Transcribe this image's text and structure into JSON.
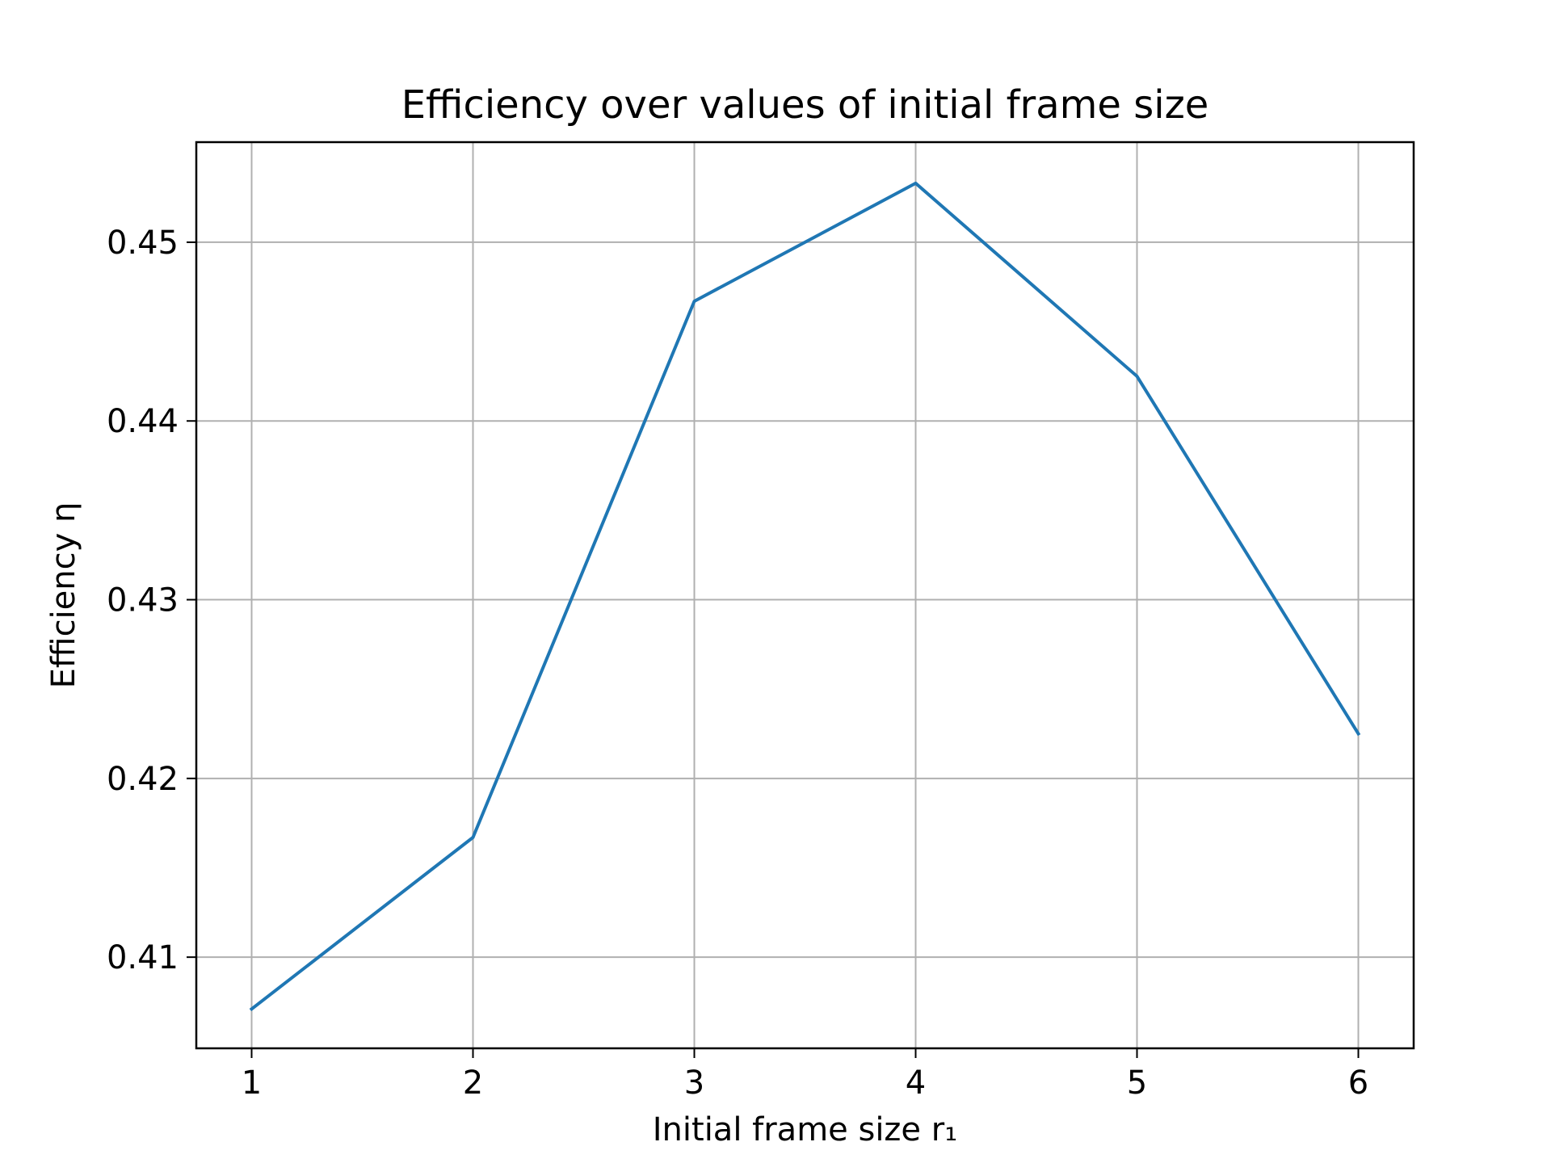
{
  "chart_data": {
    "type": "line",
    "title": "Efficiency over values of initial frame size",
    "xlabel": "Initial frame size r₁",
    "ylabel": "Efficiency η",
    "x": [
      1,
      2,
      3,
      4,
      5,
      6
    ],
    "x_tick_labels": [
      "1",
      "2",
      "3",
      "4",
      "5",
      "6"
    ],
    "y_ticks": [
      0.41,
      0.42,
      0.43,
      0.44,
      0.45
    ],
    "y_tick_labels": [
      "0.41",
      "0.42",
      "0.43",
      "0.44",
      "0.45"
    ],
    "xlim": [
      0.75,
      6.25
    ],
    "ylim": [
      0.4049,
      0.4556
    ],
    "grid": true,
    "series": [
      {
        "color": "#1f77b4",
        "values": [
          0.4071,
          0.4167,
          0.4467,
          0.4533,
          0.4425,
          0.4225
        ]
      }
    ]
  }
}
